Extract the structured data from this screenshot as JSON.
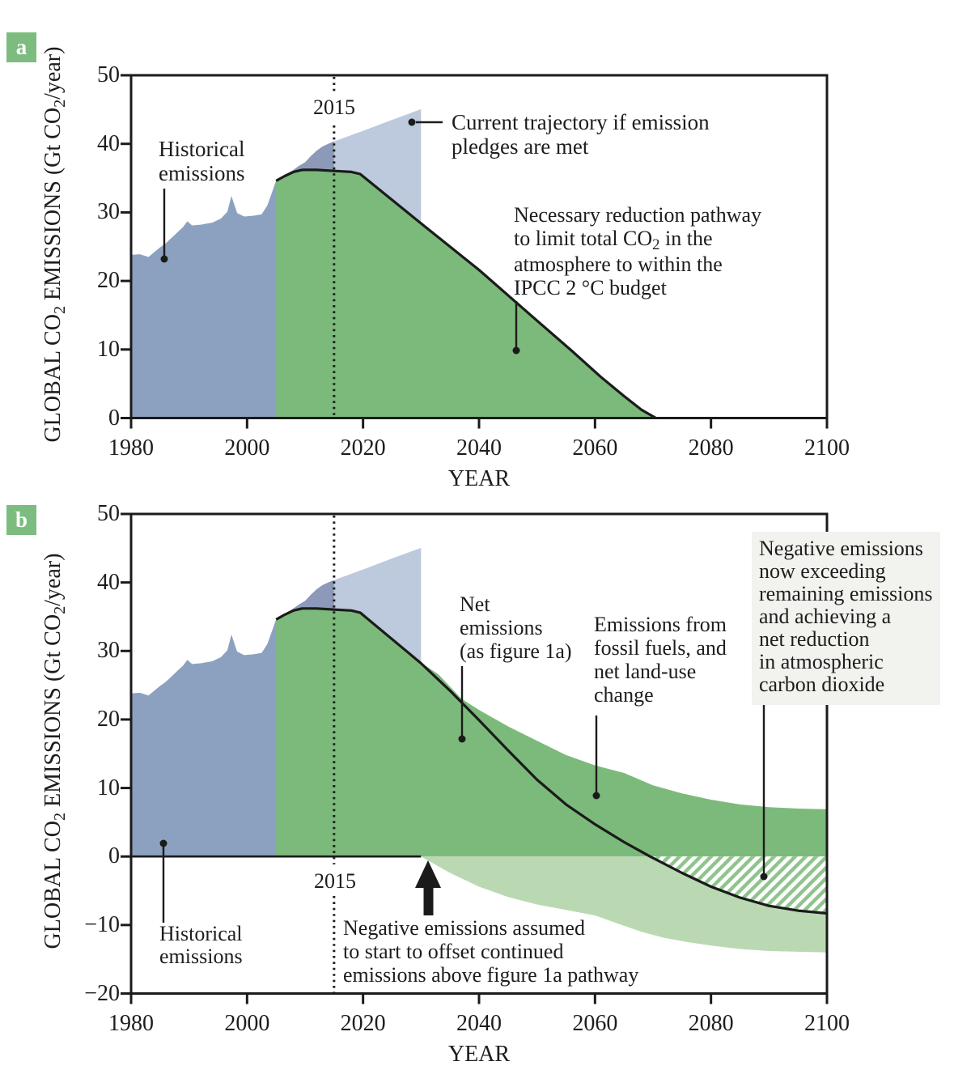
{
  "figure": {
    "background": "#ffffff"
  },
  "colors": {
    "historical": "#8ba1bf",
    "overlap": "#8c99b8",
    "pledge": "#bdc9dc",
    "emissions_green": "#7cba7b",
    "negative_green": "#bad9b2",
    "hatch_stripe": "#8fc48d",
    "line": "#1b1b1b",
    "badge": "#7cbd7f",
    "note_bg": "#f2f2ee"
  },
  "y_title": {
    "p1": "GLOBAL CO",
    "s1": "2",
    "p2": " EMISSIONS (Gt CO",
    "s2": "2",
    "p3": "/year)"
  },
  "panel_a": {
    "badge": "a",
    "marker_label": "2015",
    "annotations": {
      "historical": {
        "lines": [
          "Historical",
          "emissions"
        ]
      },
      "trajectory": {
        "lines": [
          "Current trajectory if emission",
          "pledges are met"
        ]
      },
      "pathway": {
        "line1": "Necessary reduction pathway",
        "line2a": "to limit total CO",
        "line2sub": "2",
        "line2b": " in the",
        "line3": "atmosphere to within the",
        "line4": "IPCC 2 °C budget"
      }
    }
  },
  "panel_b": {
    "badge": "b",
    "marker_label": "2015",
    "annotations": {
      "net": {
        "lines": [
          "Net",
          "emissions",
          "(as figure 1a)"
        ]
      },
      "gross": {
        "lines": [
          "Emissions from",
          "fossil fuels, and",
          "net land-use",
          "change"
        ]
      },
      "negative": {
        "lines": [
          "Negative emissions",
          "now exceeding",
          "remaining emissions",
          "and achieving a",
          "net reduction",
          "in atmospheric",
          "carbon dioxide"
        ]
      },
      "assumed": {
        "lines": [
          "Negative emissions assumed",
          "to start to offset continued",
          "emissions above figure 1a pathway"
        ]
      },
      "historical": {
        "lines": [
          "Historical",
          "emissions"
        ]
      }
    }
  },
  "chart_data": [
    {
      "id": "a",
      "type": "area",
      "title": "",
      "xlabel": "YEAR",
      "ylabel": "GLOBAL CO2 EMISSIONS (Gt CO2/year)",
      "xlim": [
        1980,
        2100
      ],
      "ylim": [
        0,
        50
      ],
      "x_ticks": [
        1980,
        2000,
        2020,
        2040,
        2060,
        2080,
        2100
      ],
      "x_tick_labels": [
        "1980",
        "2000",
        "2020",
        "2040",
        "2060",
        "2080",
        "2100"
      ],
      "y_ticks": [
        50,
        40,
        30,
        20,
        10,
        0
      ],
      "y_tick_labels": [
        "50",
        "40",
        "30",
        "20",
        "10",
        "0"
      ],
      "marker_year": 2015,
      "grid": false,
      "series": [
        {
          "name": "historical_emissions",
          "label": "Historical emissions",
          "color": "#8ba1bf",
          "points": [
            [
              1980,
              23.8
            ],
            [
              1981.5,
              23.9
            ],
            [
              1983,
              23.5
            ],
            [
              1985,
              24.9
            ],
            [
              1986,
              25.5
            ],
            [
              1987,
              26.3
            ],
            [
              1988,
              27.1
            ],
            [
              1989,
              27.9
            ],
            [
              1989.7,
              28.7
            ],
            [
              1990.5,
              28.1
            ],
            [
              1992,
              28.2
            ],
            [
              1994,
              28.5
            ],
            [
              1995.5,
              29.1
            ],
            [
              1996.6,
              30.1
            ],
            [
              1997.3,
              32.4
            ],
            [
              1998.3,
              29.9
            ],
            [
              1999.5,
              29.4
            ],
            [
              2001,
              29.5
            ],
            [
              2002.5,
              29.7
            ],
            [
              2003.5,
              31.0
            ],
            [
              2005,
              34.6
            ],
            [
              2006,
              35.1
            ],
            [
              2007,
              35.7
            ],
            [
              2008,
              36.2
            ],
            [
              2009,
              36.8
            ],
            [
              2010,
              37.3
            ],
            [
              2011,
              38.2
            ],
            [
              2012,
              39.0
            ],
            [
              2013,
              39.6
            ],
            [
              2014,
              40.0
            ],
            [
              2015,
              40.35
            ]
          ]
        },
        {
          "name": "pledge_trajectory",
          "label": "Current trajectory if emission pledges are met",
          "color": "#bdc9dc",
          "points": [
            [
              2015,
              40.35
            ],
            [
              2020,
              41.9
            ],
            [
              2025,
              43.5
            ],
            [
              2030,
              45.05
            ]
          ]
        },
        {
          "name": "reduction_pathway",
          "label": "Necessary reduction pathway to limit total CO2 in the atmosphere to within the IPCC 2 °C budget",
          "color": "#7cba7b",
          "points": [
            [
              2005,
              34.6
            ],
            [
              2006.5,
              35.3
            ],
            [
              2008,
              35.9
            ],
            [
              2009.5,
              36.2
            ],
            [
              2012,
              36.2
            ],
            [
              2015,
              36.05
            ],
            [
              2018,
              35.9
            ],
            [
              2019.5,
              35.6
            ],
            [
              2030,
              28.4
            ],
            [
              2040,
              21.6
            ],
            [
              2050,
              14.2
            ],
            [
              2056,
              9.8
            ],
            [
              2061,
              6.0
            ],
            [
              2065,
              3.2
            ],
            [
              2068,
              1.2
            ],
            [
              2070.5,
              0
            ]
          ]
        }
      ]
    },
    {
      "id": "b",
      "type": "area",
      "title": "",
      "xlabel": "YEAR",
      "ylabel": "GLOBAL CO2 EMISSIONS (Gt CO2/year)",
      "xlim": [
        1980,
        2100
      ],
      "ylim": [
        -20,
        50
      ],
      "x_ticks": [
        1980,
        2000,
        2020,
        2040,
        2060,
        2080,
        2100
      ],
      "x_tick_labels": [
        "1980",
        "2000",
        "2020",
        "2040",
        "2060",
        "2080",
        "2100"
      ],
      "y_ticks": [
        50,
        40,
        30,
        20,
        10,
        0,
        -10,
        -20
      ],
      "y_tick_labels": [
        "50",
        "40",
        "30",
        "20",
        "10",
        "0",
        "−10",
        "−20"
      ],
      "marker_year": 2015,
      "negative_emissions_start_year": 2030,
      "grid": false,
      "series": [
        {
          "name": "historical_emissions",
          "label": "Historical emissions",
          "color": "#8ba1bf",
          "points": [
            [
              1980,
              23.8
            ],
            [
              1981.5,
              23.9
            ],
            [
              1983,
              23.5
            ],
            [
              1985,
              24.9
            ],
            [
              1986,
              25.5
            ],
            [
              1987,
              26.3
            ],
            [
              1988,
              27.1
            ],
            [
              1989,
              27.9
            ],
            [
              1989.7,
              28.7
            ],
            [
              1990.5,
              28.1
            ],
            [
              1992,
              28.2
            ],
            [
              1994,
              28.5
            ],
            [
              1995.5,
              29.1
            ],
            [
              1996.6,
              30.1
            ],
            [
              1997.3,
              32.4
            ],
            [
              1998.3,
              29.9
            ],
            [
              1999.5,
              29.4
            ],
            [
              2001,
              29.5
            ],
            [
              2002.5,
              29.7
            ],
            [
              2003.5,
              31.0
            ],
            [
              2005,
              34.6
            ],
            [
              2006,
              35.1
            ],
            [
              2007,
              35.7
            ],
            [
              2008,
              36.2
            ],
            [
              2009,
              36.8
            ],
            [
              2010,
              37.3
            ],
            [
              2011,
              38.2
            ],
            [
              2012,
              39.0
            ],
            [
              2013,
              39.6
            ],
            [
              2014,
              40.0
            ],
            [
              2015,
              40.35
            ]
          ]
        },
        {
          "name": "pledge_trajectory",
          "label": "Current trajectory if emission pledges are met",
          "color": "#bdc9dc",
          "points": [
            [
              2015,
              40.35
            ],
            [
              2020,
              41.9
            ],
            [
              2025,
              43.5
            ],
            [
              2030,
              45.05
            ]
          ]
        },
        {
          "name": "net_emissions",
          "label": "Net emissions (as figure 1a)",
          "color": "#1b1b1b",
          "points": [
            [
              2005,
              34.6
            ],
            [
              2006.5,
              35.3
            ],
            [
              2008,
              35.9
            ],
            [
              2009.5,
              36.2
            ],
            [
              2012,
              36.2
            ],
            [
              2015,
              36.05
            ],
            [
              2018,
              35.9
            ],
            [
              2019.5,
              35.6
            ],
            [
              2030,
              28.2
            ],
            [
              2035,
              24.2
            ],
            [
              2040,
              19.9
            ],
            [
              2045,
              15.5
            ],
            [
              2050,
              11.2
            ],
            [
              2055,
              7.6
            ],
            [
              2060,
              4.7
            ],
            [
              2065,
              2.1
            ],
            [
              2069.5,
              0
            ],
            [
              2075,
              -2.4
            ],
            [
              2080,
              -4.4
            ],
            [
              2085,
              -6.0
            ],
            [
              2090,
              -7.2
            ],
            [
              2095,
              -7.9
            ],
            [
              2100,
              -8.3
            ]
          ]
        },
        {
          "name": "gross_emissions",
          "label": "Emissions from fossil fuels, and net land-use change",
          "color": "#7cba7b",
          "points": [
            [
              2005,
              34.6
            ],
            [
              2006.5,
              35.3
            ],
            [
              2008,
              35.9
            ],
            [
              2009.5,
              36.2
            ],
            [
              2012,
              36.2
            ],
            [
              2015,
              36.05
            ],
            [
              2018,
              35.9
            ],
            [
              2019.5,
              35.6
            ],
            [
              2030,
              28.3
            ],
            [
              2033,
              26.6
            ],
            [
              2037,
              23.0
            ],
            [
              2040,
              21.4
            ],
            [
              2045,
              19.0
            ],
            [
              2050,
              16.9
            ],
            [
              2055,
              14.8
            ],
            [
              2060,
              13.3
            ],
            [
              2065,
              12.2
            ],
            [
              2070,
              10.4
            ],
            [
              2075,
              9.2
            ],
            [
              2080,
              8.3
            ],
            [
              2085,
              7.6
            ],
            [
              2090,
              7.2
            ],
            [
              2095,
              7.0
            ],
            [
              2100,
              6.9
            ]
          ]
        },
        {
          "name": "negative_emissions_bottom",
          "label": "Negative emissions",
          "color": "#bad9b2",
          "points": [
            [
              2030,
              0
            ],
            [
              2035,
              -2.4
            ],
            [
              2040,
              -4.4
            ],
            [
              2045,
              -5.9
            ],
            [
              2050,
              -7.0
            ],
            [
              2055,
              -7.8
            ],
            [
              2060,
              -8.6
            ],
            [
              2064,
              -9.8
            ],
            [
              2068,
              -11.0
            ],
            [
              2072,
              -11.9
            ],
            [
              2076,
              -12.5
            ],
            [
              2080,
              -13.0
            ],
            [
              2085,
              -13.5
            ],
            [
              2090,
              -13.8
            ],
            [
              2095,
              -13.9
            ],
            [
              2100,
              -14.0
            ]
          ]
        }
      ]
    }
  ]
}
